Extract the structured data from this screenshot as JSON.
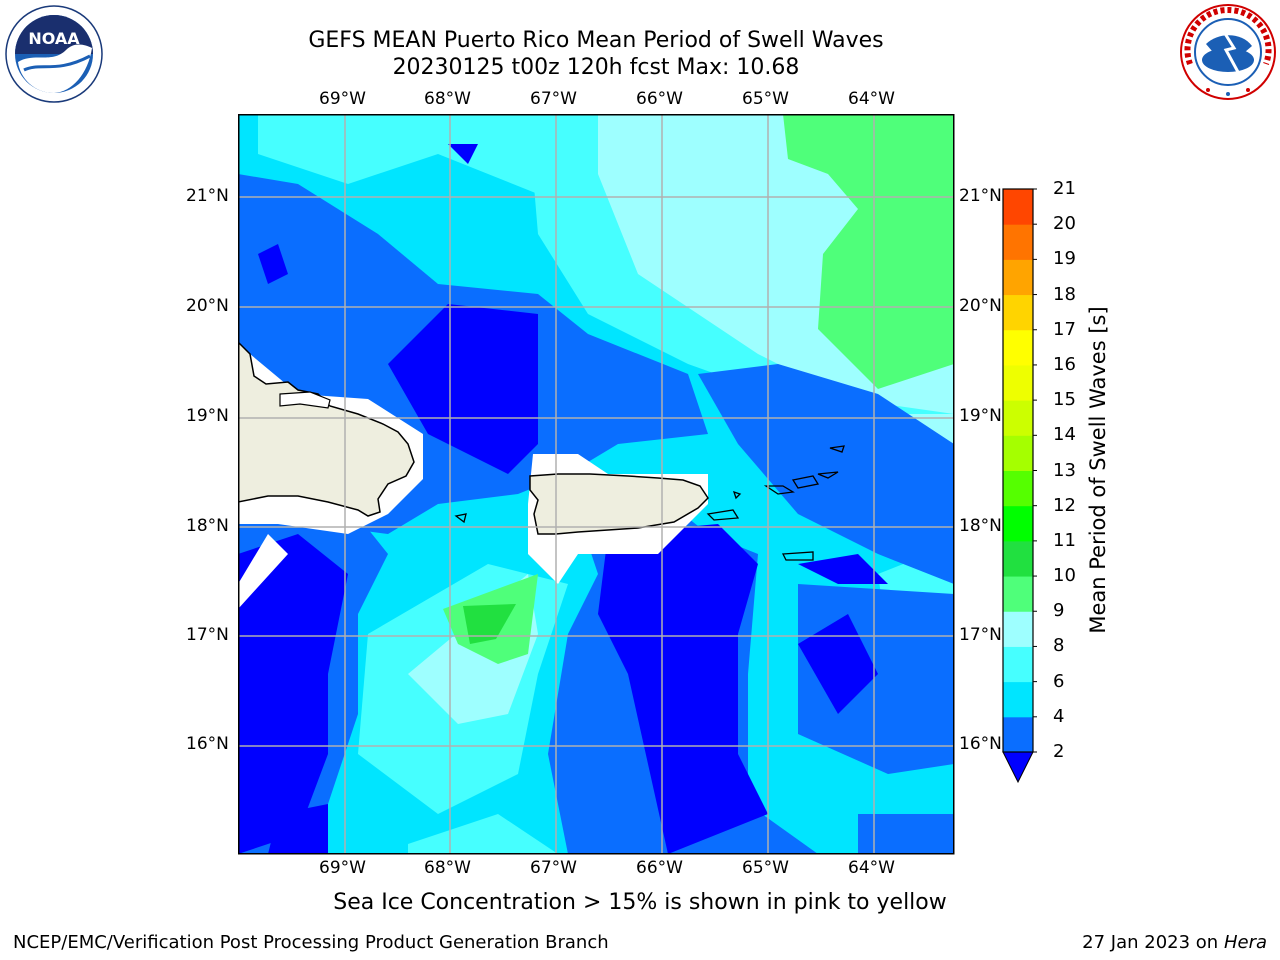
{
  "title": {
    "line1": "GEFS MEAN Puerto Rico Mean Period of Swell Waves",
    "line2": "20230125 t00z 120h fcst   Max: 10.68"
  },
  "logos": {
    "left": {
      "icon": "noaa-logo",
      "text": "NOAA"
    },
    "right": {
      "icon": "national-weather-service-logo",
      "text": "NATIONAL WEATHER SERVICE"
    }
  },
  "map": {
    "lon_labels": [
      "69°W",
      "68°W",
      "67°W",
      "66°W",
      "65°W",
      "64°W"
    ],
    "lat_labels": [
      "21°N",
      "20°N",
      "19°N",
      "18°N",
      "17°N",
      "16°N"
    ],
    "lon_range": [
      -70.0,
      -63.3
    ],
    "lat_range": [
      15.0,
      21.75
    ],
    "grid": true,
    "land_color": "#eeeedf",
    "coast_color": "#000000"
  },
  "colorbar": {
    "title": "Mean Period of Swell Waves [s]",
    "ticks": [
      "2",
      "4",
      "6",
      "8",
      "9",
      "10",
      "11",
      "12",
      "13",
      "14",
      "15",
      "16",
      "17",
      "18",
      "19",
      "20",
      "21"
    ],
    "colors": [
      "#0000ff",
      "#0a6eff",
      "#00e5ff",
      "#46ffff",
      "#9effff",
      "#4fff7a",
      "#21e040",
      "#00ff00",
      "#55ff00",
      "#a5ff00",
      "#ccff00",
      "#eeff00",
      "#ffff00",
      "#ffd400",
      "#ffa400",
      "#ff7400",
      "#ff4600",
      "#ff0000"
    ],
    "extend": "min"
  },
  "chart_data": {
    "type": "heatmap",
    "variable": "Mean Period of Swell Waves",
    "units": "s",
    "forecast_init": "20230125 t00z",
    "forecast_hour": "120h",
    "max_value": 10.68,
    "levels": [
      2,
      4,
      6,
      8,
      9,
      10,
      11,
      12,
      13,
      14,
      15,
      16,
      17,
      18,
      19,
      20,
      21
    ]
  },
  "note": "Sea Ice Concentration > 15% is shown in pink to yellow",
  "footer": {
    "left": "NCEP/EMC/Verification Post Processing Product Generation Branch",
    "right_date": "27 Jan 2023 on",
    "right_host": "Hera"
  }
}
